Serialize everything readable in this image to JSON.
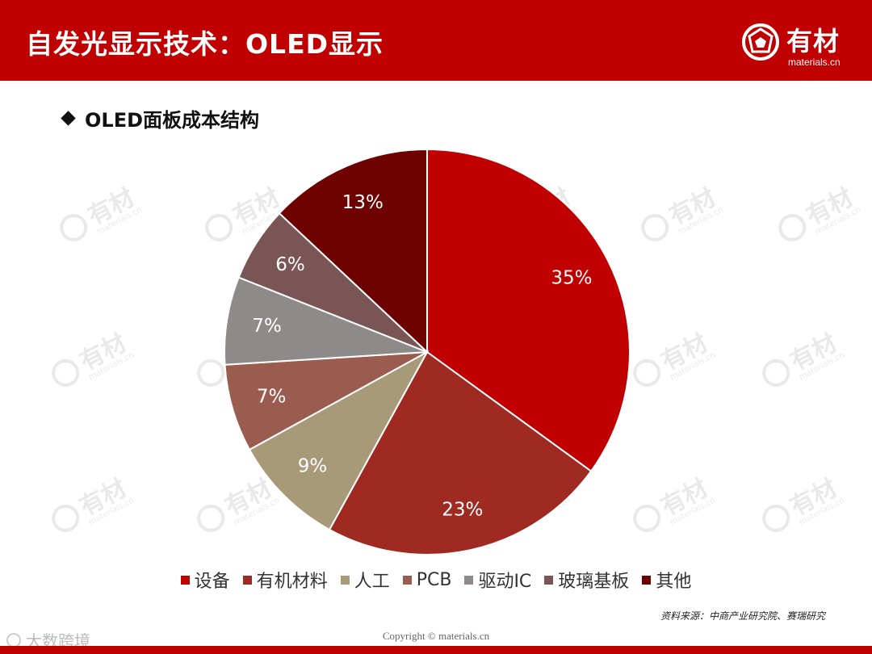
{
  "header": {
    "title": "自发光显示技术：OLED显示",
    "logo_text": "有材",
    "logo_domain": "materials.cn",
    "bg_color": "#c00000"
  },
  "subtitle": "OLED面板成本结构",
  "watermark": {
    "text": "有材",
    "domain": "materials.cn"
  },
  "chart_data": {
    "type": "pie",
    "title": "OLED面板成本结构",
    "categories": [
      "设备",
      "有机材料",
      "人工",
      "PCB",
      "驱动IC",
      "玻璃基板",
      "其他"
    ],
    "values": [
      35,
      23,
      9,
      7,
      7,
      6,
      13
    ],
    "value_labels": [
      "35%",
      "23%",
      "9%",
      "7%",
      "7%",
      "6%",
      "13%"
    ],
    "colors": [
      "#c00000",
      "#9e2a22",
      "#a89978",
      "#9b5c50",
      "#8f8a8a",
      "#7a5555",
      "#6e0000"
    ],
    "legend_position": "bottom"
  },
  "source": "资料来源：中商产业研究院、赛瑞研究",
  "copyright": "Copyright © materials.cn",
  "brand_corner": "大数跨境"
}
